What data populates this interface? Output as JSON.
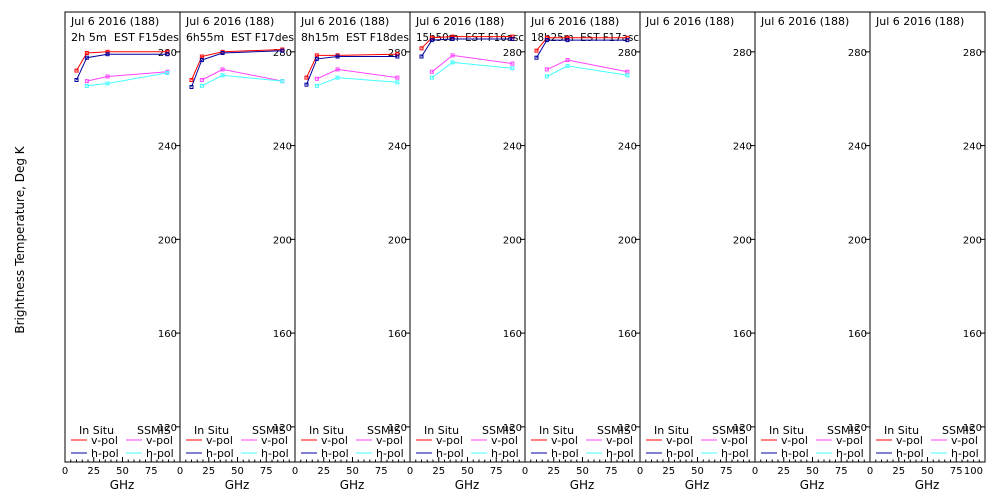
{
  "chart_data": {
    "type": "line",
    "ylabel": "Brightness Temperature, Deg K",
    "xlabel": "GHz",
    "ylim": [
      105,
      297
    ],
    "xlim": [
      0,
      100
    ],
    "yticks": [
      120,
      160,
      200,
      240,
      280
    ],
    "xticks": [
      0,
      25,
      50,
      75,
      100
    ],
    "xtick_labels": [
      "0",
      "25",
      "50",
      "75"
    ],
    "legend": {
      "in_situ_title": "In Situ",
      "ssmis_title": "SSMIS",
      "v_pol": "v-pol",
      "h_pol": "h-pol"
    },
    "colors": {
      "in_situ_v": "#ff0000",
      "in_situ_h": "#0000a0",
      "ssmis_v": "#ff44ff",
      "ssmis_h": "#44ffff",
      "axis": "#000000"
    },
    "panels": [
      {
        "title": "Jul 6 2016 (188)",
        "subtitle": "2h 5m  EST F15des",
        "series": [
          {
            "name": "In Situ v-pol",
            "x": [
              10,
              19,
              37,
              89
            ],
            "y": [
              272,
              279.5,
              280,
              280
            ]
          },
          {
            "name": "In Situ h-pol",
            "x": [
              10,
              19,
              37,
              89
            ],
            "y": [
              268,
              277.5,
              279,
              279
            ]
          },
          {
            "name": "SSMIS v-pol",
            "x": [
              19,
              37,
              89
            ],
            "y": [
              267.5,
              269.5,
              271.5
            ]
          },
          {
            "name": "SSMIS h-pol",
            "x": [
              19,
              37,
              89
            ],
            "y": [
              265.5,
              266.5,
              271
            ]
          }
        ]
      },
      {
        "title": "Jul 6 2016 (188)",
        "subtitle": "6h55m  EST F17des",
        "series": [
          {
            "name": "In Situ v-pol",
            "x": [
              10,
              19,
              37,
              89
            ],
            "y": [
              268,
              278,
              280,
              281
            ]
          },
          {
            "name": "In Situ h-pol",
            "x": [
              10,
              19,
              37,
              89
            ],
            "y": [
              265,
              276.5,
              279.5,
              280.5
            ]
          },
          {
            "name": "SSMIS v-pol",
            "x": [
              19,
              37,
              89
            ],
            "y": [
              268,
              272.5,
              267.5
            ]
          },
          {
            "name": "SSMIS h-pol",
            "x": [
              19,
              37,
              89
            ],
            "y": [
              265.5,
              270,
              267.5
            ]
          }
        ]
      },
      {
        "title": "Jul 6 2016 (188)",
        "subtitle": "8h15m  EST F18des",
        "series": [
          {
            "name": "In Situ v-pol",
            "x": [
              10,
              19,
              37,
              89
            ],
            "y": [
              269,
              278.5,
              278.5,
              279
            ]
          },
          {
            "name": "In Situ h-pol",
            "x": [
              10,
              19,
              37,
              89
            ],
            "y": [
              266,
              277,
              278,
              278
            ]
          },
          {
            "name": "SSMIS v-pol",
            "x": [
              19,
              37,
              89
            ],
            "y": [
              268.5,
              272.5,
              269
            ]
          },
          {
            "name": "SSMIS h-pol",
            "x": [
              19,
              37,
              89
            ],
            "y": [
              265.5,
              269,
              267
            ]
          }
        ]
      },
      {
        "title": "Jul 6 2016 (188)",
        "subtitle": "15h50m  EST F16asc",
        "series": [
          {
            "name": "In Situ v-pol",
            "x": [
              10,
              19,
              37,
              89
            ],
            "y": [
              281.5,
              286,
              286.5,
              286.5
            ]
          },
          {
            "name": "In Situ h-pol",
            "x": [
              10,
              19,
              37,
              89
            ],
            "y": [
              278,
              285,
              285.5,
              285.5
            ]
          },
          {
            "name": "SSMIS v-pol",
            "x": [
              19,
              37,
              89
            ],
            "y": [
              271.5,
              278.5,
              275
            ]
          },
          {
            "name": "SSMIS h-pol",
            "x": [
              19,
              37,
              89
            ],
            "y": [
              269,
              275.5,
              273
            ]
          }
        ]
      },
      {
        "title": "Jul 6 2016 (188)",
        "subtitle": "18h25m  EST F17asc",
        "series": [
          {
            "name": "In Situ v-pol",
            "x": [
              10,
              19,
              37,
              89
            ],
            "y": [
              280.5,
              286,
              286,
              286
            ]
          },
          {
            "name": "In Situ h-pol",
            "x": [
              10,
              19,
              37,
              89
            ],
            "y": [
              277.5,
              285,
              285,
              285
            ]
          },
          {
            "name": "SSMIS v-pol",
            "x": [
              19,
              37,
              89
            ],
            "y": [
              272.5,
              276.5,
              271.5
            ]
          },
          {
            "name": "SSMIS h-pol",
            "x": [
              19,
              37,
              89
            ],
            "y": [
              269.5,
              274,
              270
            ]
          }
        ]
      },
      {
        "title": "Jul 6 2016 (188)",
        "subtitle": "",
        "series": []
      },
      {
        "title": "Jul 6 2016 (188)",
        "subtitle": "",
        "series": []
      },
      {
        "title": "Jul 6 2016 (188)",
        "subtitle": "",
        "series": []
      }
    ]
  }
}
